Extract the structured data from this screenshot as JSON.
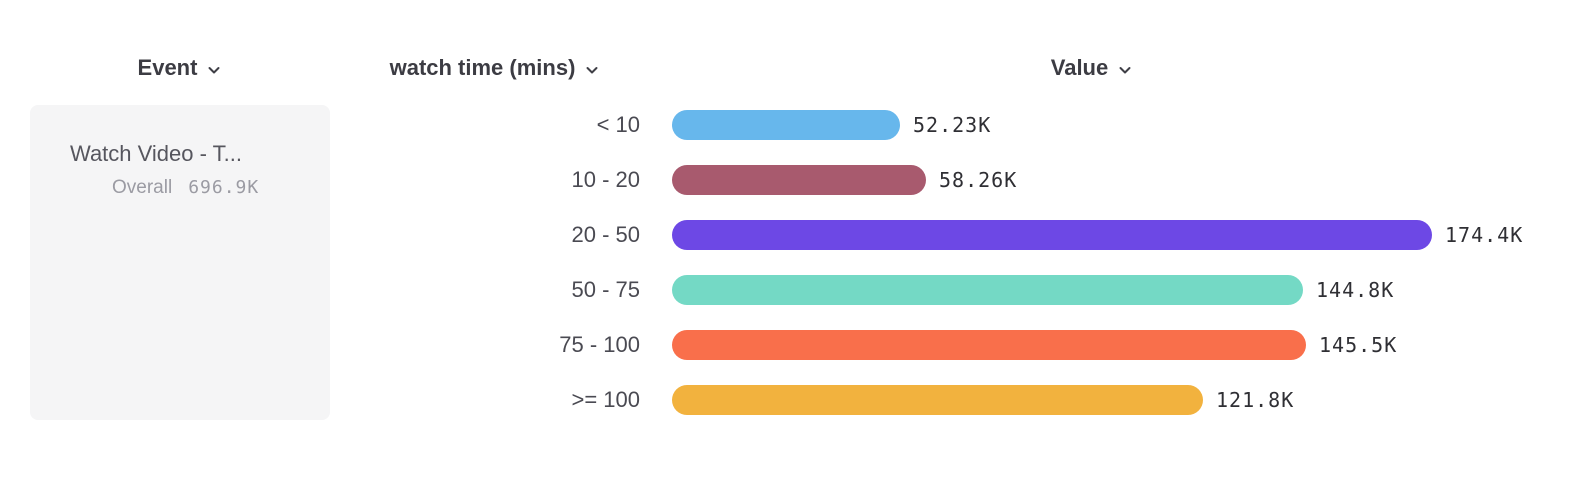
{
  "headers": {
    "event": {
      "label": "Event"
    },
    "breakdown": {
      "label": "watch time (mins)"
    },
    "value": {
      "label": "Value"
    }
  },
  "event_panel": {
    "name": "Watch Video - T...",
    "overall_label": "Overall",
    "overall_value": "696.9K"
  },
  "chart_data": {
    "type": "bar",
    "orientation": "horizontal",
    "title": "",
    "xlabel": "Value",
    "ylabel": "watch time (mins)",
    "categories": [
      "< 10",
      "10 - 20",
      "20 - 50",
      "50 - 75",
      "75 - 100",
      ">= 100"
    ],
    "values": [
      52230,
      58260,
      174400,
      144800,
      145500,
      121800
    ],
    "value_labels": [
      "52.23K",
      "58.26K",
      "174.4K",
      "144.8K",
      "145.5K",
      "121.8K"
    ],
    "colors": [
      "#67b7ec",
      "#a85a6e",
      "#6d48e5",
      "#74d9c5",
      "#f96f4b",
      "#f2b23e"
    ],
    "xlim": [
      0,
      174400
    ],
    "grid": false,
    "legend": false,
    "overall_total": "696.9K"
  }
}
